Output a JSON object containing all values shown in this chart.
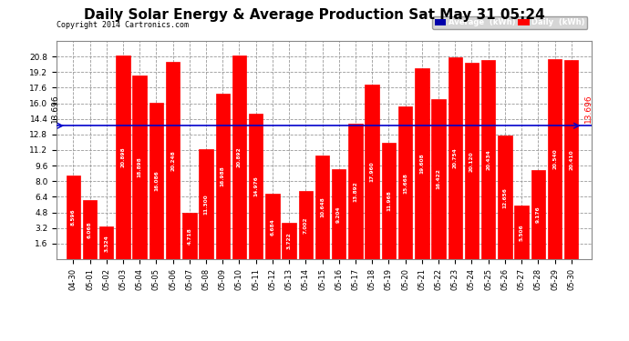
{
  "title": "Daily Solar Energy & Average Production Sat May 31 05:24",
  "copyright": "Copyright 2014 Cartronics.com",
  "average_value": 13.696,
  "average_label": "13.696",
  "categories": [
    "04-30",
    "05-01",
    "05-02",
    "05-03",
    "05-04",
    "05-05",
    "05-06",
    "05-07",
    "05-08",
    "05-09",
    "05-10",
    "05-11",
    "05-12",
    "05-13",
    "05-14",
    "05-15",
    "05-16",
    "05-17",
    "05-18",
    "05-19",
    "05-20",
    "05-21",
    "05-22",
    "05-23",
    "05-24",
    "05-25",
    "05-26",
    "05-27",
    "05-28",
    "05-29",
    "05-30"
  ],
  "values": [
    8.596,
    6.068,
    3.324,
    20.898,
    18.898,
    16.086,
    20.248,
    4.718,
    11.3,
    16.988,
    20.892,
    14.976,
    6.684,
    3.722,
    7.002,
    10.648,
    9.204,
    13.892,
    17.96,
    11.968,
    15.668,
    19.608,
    16.422,
    20.754,
    20.12,
    20.434,
    12.656,
    5.506,
    9.176,
    20.54,
    20.41
  ],
  "bar_color": "#FF0000",
  "bar_edge_color": "#FF0000",
  "avg_line_color": "#0000CC",
  "background_color": "#FFFFFF",
  "plot_bg_color": "#FFFFFF",
  "grid_color": "#999999",
  "title_fontsize": 11,
  "ylim": [
    0,
    22.4
  ],
  "yticks": [
    1.6,
    3.2,
    4.8,
    6.4,
    8.0,
    9.6,
    11.2,
    12.8,
    14.4,
    16.0,
    17.6,
    19.2,
    20.8
  ],
  "legend_avg_color": "#0000AA",
  "legend_avg_text": "Average  (kWh)",
  "legend_daily_color": "#FF0000",
  "legend_daily_text": "Daily  (kWh)"
}
